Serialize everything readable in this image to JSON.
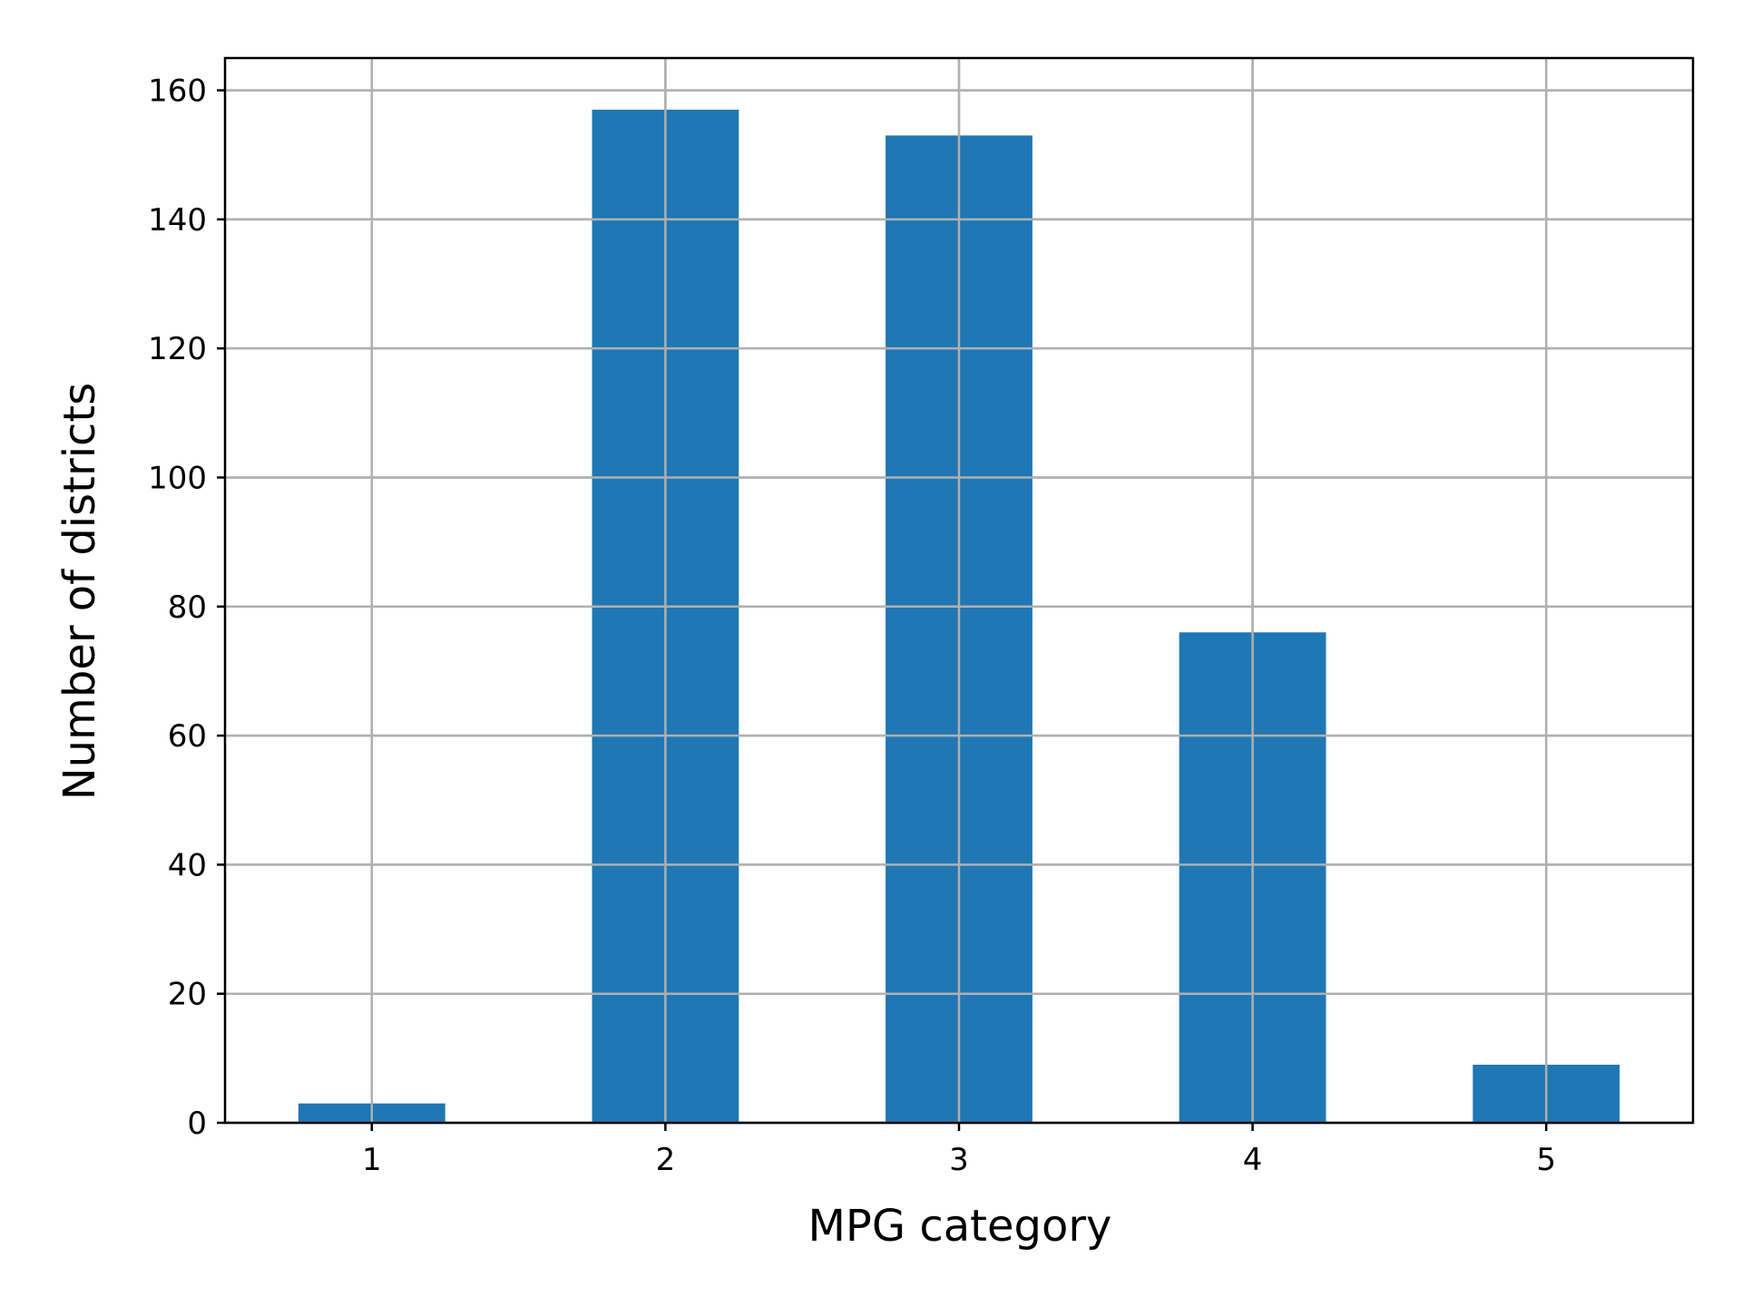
{
  "chart_data": {
    "type": "bar",
    "categories": [
      "1",
      "2",
      "3",
      "4",
      "5"
    ],
    "values": [
      3,
      157,
      153,
      76,
      9
    ],
    "title": "",
    "xlabel": "MPG category",
    "ylabel": "Number of districts",
    "ylim": [
      0,
      165
    ],
    "yticks": [
      0,
      20,
      40,
      60,
      80,
      100,
      120,
      140,
      160
    ],
    "grid": true,
    "legend": "none",
    "bar_color": "#1f77b4"
  }
}
